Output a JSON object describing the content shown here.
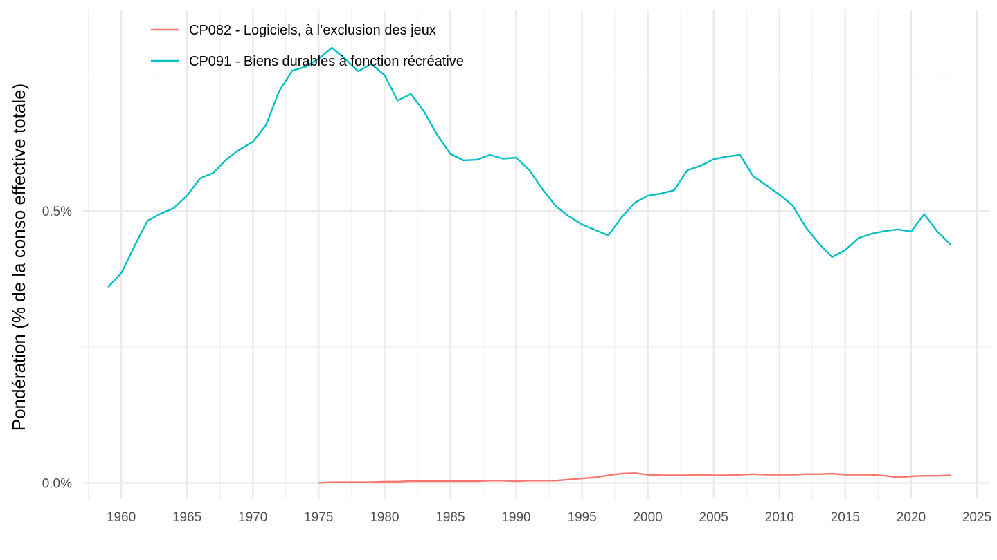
{
  "chart_data": {
    "type": "line",
    "title": "",
    "xlabel": "",
    "ylabel": "Pondération (% de la conso effective totale)",
    "xlim": [
      1957,
      2026
    ],
    "ylim": [
      -0.03,
      0.87
    ],
    "x_ticks": [
      1960,
      1965,
      1970,
      1975,
      1980,
      1985,
      1990,
      1995,
      2000,
      2005,
      2010,
      2015,
      2020,
      2025
    ],
    "y_ticks": [
      0.0,
      0.5
    ],
    "y_tick_labels": [
      "0.0%",
      "0.5%"
    ],
    "y_minor": [
      0.25,
      0.75
    ],
    "grid": true,
    "legend_position": "top-left",
    "series": [
      {
        "name": "CP082 - Logiciels, à l’exclusion des jeux",
        "color": "#F8766D",
        "x": [
          1975,
          1976,
          1977,
          1978,
          1979,
          1980,
          1981,
          1982,
          1983,
          1984,
          1985,
          1986,
          1987,
          1988,
          1989,
          1990,
          1991,
          1992,
          1993,
          1994,
          1995,
          1996,
          1997,
          1998,
          1999,
          2000,
          2001,
          2002,
          2003,
          2004,
          2005,
          2006,
          2007,
          2008,
          2009,
          2010,
          2011,
          2012,
          2013,
          2014,
          2015,
          2016,
          2017,
          2018,
          2019,
          2020,
          2021,
          2022,
          2023
        ],
        "values": [
          0.0,
          0.001,
          0.001,
          0.001,
          0.001,
          0.002,
          0.002,
          0.003,
          0.003,
          0.003,
          0.003,
          0.003,
          0.003,
          0.004,
          0.004,
          0.003,
          0.004,
          0.004,
          0.004,
          0.006,
          0.008,
          0.01,
          0.014,
          0.017,
          0.018,
          0.015,
          0.014,
          0.014,
          0.014,
          0.015,
          0.014,
          0.014,
          0.015,
          0.016,
          0.015,
          0.015,
          0.015,
          0.016,
          0.016,
          0.017,
          0.015,
          0.015,
          0.015,
          0.013,
          0.01,
          0.012,
          0.013,
          0.013,
          0.014
        ]
      },
      {
        "name": "CP091 - Biens durables à fonction récréative",
        "color": "#00BFC4",
        "x": [
          1959,
          1960,
          1961,
          1962,
          1963,
          1964,
          1965,
          1966,
          1967,
          1968,
          1969,
          1970,
          1971,
          1972,
          1973,
          1974,
          1975,
          1976,
          1977,
          1978,
          1979,
          1980,
          1981,
          1982,
          1983,
          1984,
          1985,
          1986,
          1987,
          1988,
          1989,
          1990,
          1991,
          1992,
          1993,
          1994,
          1995,
          1996,
          1997,
          1998,
          1999,
          2000,
          2001,
          2002,
          2003,
          2004,
          2005,
          2006,
          2007,
          2008,
          2009,
          2010,
          2011,
          2012,
          2013,
          2014,
          2015,
          2016,
          2017,
          2018,
          2019,
          2020,
          2021,
          2022,
          2023
        ],
        "values": [
          0.36,
          0.385,
          0.435,
          0.482,
          0.495,
          0.505,
          0.528,
          0.56,
          0.57,
          0.595,
          0.613,
          0.627,
          0.658,
          0.72,
          0.758,
          0.765,
          0.78,
          0.8,
          0.78,
          0.757,
          0.77,
          0.75,
          0.703,
          0.715,
          0.683,
          0.64,
          0.605,
          0.593,
          0.594,
          0.603,
          0.596,
          0.598,
          0.575,
          0.54,
          0.509,
          0.49,
          0.475,
          0.465,
          0.455,
          0.488,
          0.515,
          0.528,
          0.532,
          0.538,
          0.575,
          0.583,
          0.595,
          0.6,
          0.603,
          0.564,
          0.547,
          0.53,
          0.51,
          0.47,
          0.44,
          0.415,
          0.428,
          0.45,
          0.458,
          0.463,
          0.466,
          0.462,
          0.494,
          0.462,
          0.438
        ]
      }
    ]
  }
}
